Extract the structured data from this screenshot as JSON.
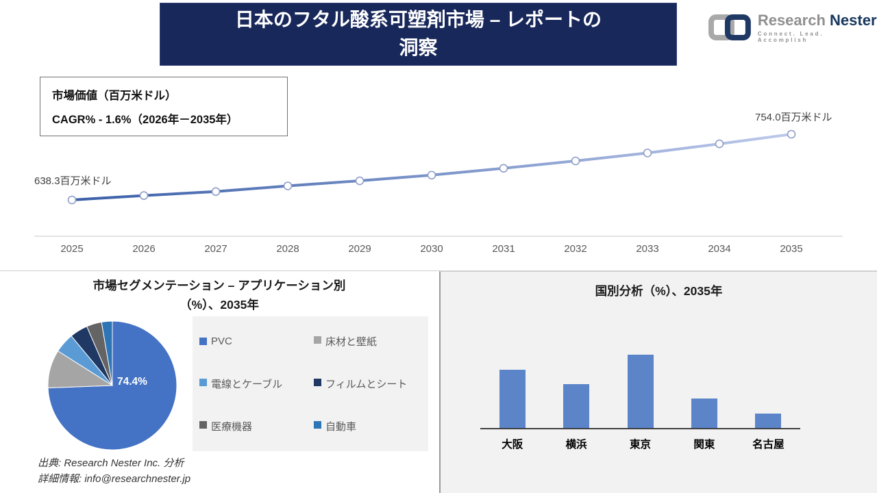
{
  "header": {
    "title_line1": "日本のフタル酸系可塑剤市場 – レポートの",
    "title_line2": "洞察"
  },
  "logo": {
    "brand_primary": "Research",
    "brand_secondary": "Nester",
    "tagline": "Connect. Lead. Accomplish"
  },
  "colors": {
    "banner_navy": "#18285A",
    "panel_gray": "#F2F2F2",
    "axis_gray": "#D9D9D9",
    "tick_gray": "#595959",
    "bar_axis_dark": "#3F3F3F"
  },
  "chart_data": [
    {
      "id": "market-value-line",
      "type": "line",
      "title": "市場価値（百万米ドル）",
      "subtitle": "CAGR% - 1.6%（2026年－2035年）",
      "x": [
        "2025",
        "2026",
        "2027",
        "2028",
        "2029",
        "2030",
        "2031",
        "2032",
        "2033",
        "2034",
        "2035"
      ],
      "values": [
        638.3,
        646.0,
        653.0,
        663.0,
        672.0,
        682.0,
        694.0,
        707.0,
        721.0,
        737.0,
        754.0
      ],
      "start_label": "638.3百万米ドル",
      "end_label": "754.0百万米ドル",
      "ylim": [
        600,
        780
      ],
      "grid": false,
      "line_gradient": [
        "#3A5FA8",
        "#BDC9EA"
      ],
      "marker": "open-circle",
      "marker_stroke": "#8E9CC8"
    },
    {
      "id": "application-pie",
      "type": "pie",
      "title_line1": "市場セグメンテーション – アプリケーション別",
      "title_line2": "（%）、2035年",
      "labels": [
        "PVC",
        "床材と壁紙",
        "電線とケーブル",
        "フィルムとシート",
        "医療機器",
        "自動車"
      ],
      "values": [
        74.4,
        9.6,
        5.0,
        4.5,
        3.8,
        2.7
      ],
      "colors": [
        "#4472C4",
        "#A5A5A5",
        "#5B9BD5",
        "#1F3864",
        "#646464",
        "#2E75B6"
      ],
      "shown_label": "74.4%",
      "legend_position": "right"
    },
    {
      "id": "country-bar",
      "type": "bar",
      "title": "国別分析（%）、2035年",
      "categories": [
        "大阪",
        "横浜",
        "東京",
        "関東",
        "名古屋"
      ],
      "values": [
        28,
        21,
        35,
        14,
        7
      ],
      "ylim": [
        0,
        40
      ],
      "grid": false,
      "bar_color": "#5B84C9"
    }
  ],
  "footer": {
    "source": "出典: Research Nester Inc. 分析",
    "contact": "詳細情報: info@researchnester.jp"
  }
}
